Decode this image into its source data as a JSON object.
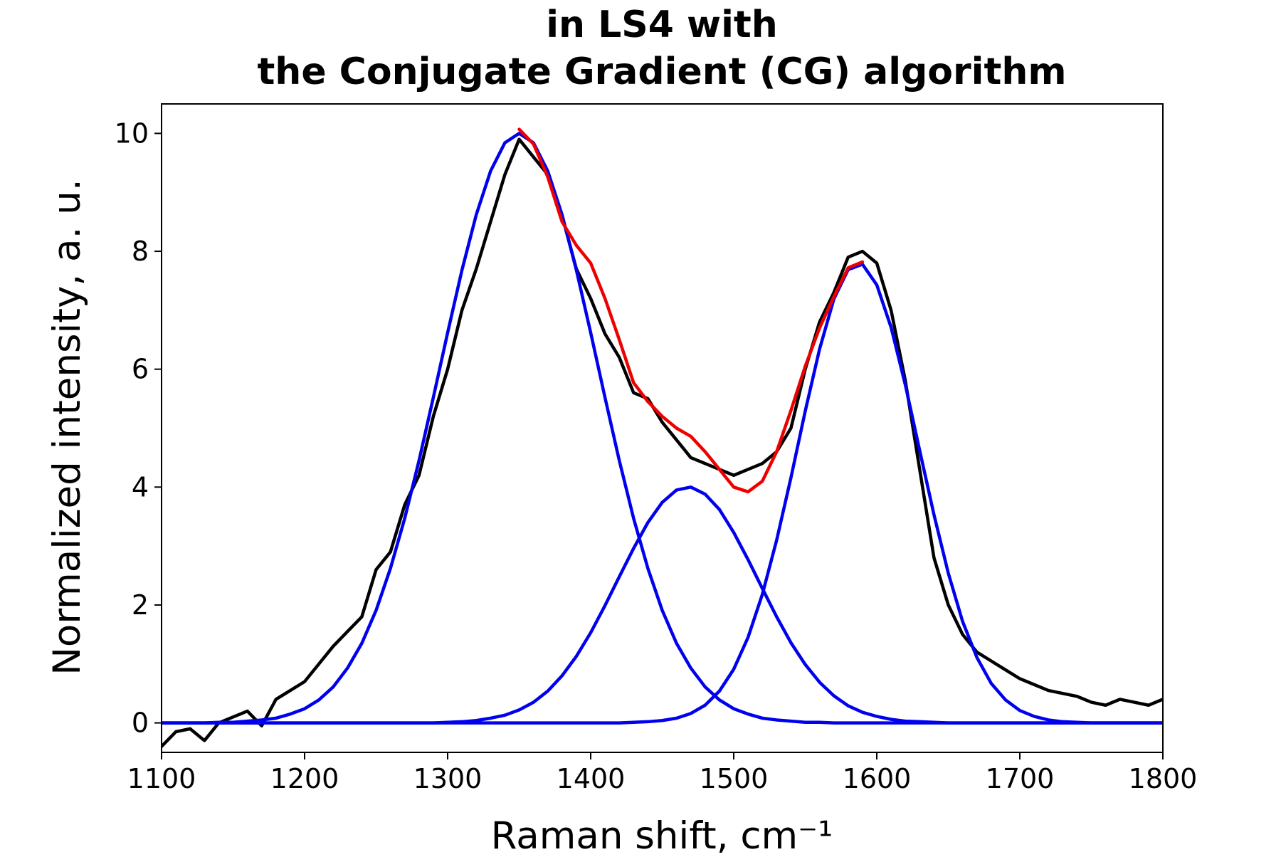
{
  "chart_data": {
    "type": "line",
    "title": [
      "in LS4 with",
      "the Conjugate Gradient (CG) algorithm"
    ],
    "xlabel": "Raman shift, cm⁻¹",
    "ylabel": "Normalized intensity, a. u.",
    "xlim": [
      1100,
      1800
    ],
    "xticks": [
      1100,
      1200,
      1300,
      1400,
      1500,
      1600,
      1700,
      1800
    ],
    "ylim": [
      -0.5,
      10.5
    ],
    "yticks": [
      0,
      2,
      4,
      6,
      8,
      10
    ],
    "grid": false,
    "x": [
      1100,
      1110,
      1120,
      1130,
      1140,
      1150,
      1160,
      1170,
      1180,
      1190,
      1200,
      1210,
      1220,
      1230,
      1240,
      1250,
      1260,
      1270,
      1280,
      1290,
      1300,
      1310,
      1320,
      1330,
      1340,
      1350,
      1360,
      1370,
      1380,
      1390,
      1400,
      1410,
      1420,
      1430,
      1440,
      1450,
      1460,
      1470,
      1480,
      1490,
      1500,
      1510,
      1520,
      1530,
      1540,
      1550,
      1560,
      1570,
      1580,
      1590,
      1600,
      1610,
      1620,
      1630,
      1640,
      1650,
      1660,
      1670,
      1680,
      1690,
      1700,
      1710,
      1720,
      1730,
      1740,
      1750,
      1760,
      1770,
      1780,
      1790,
      1800
    ],
    "series": [
      {
        "color": "#000000",
        "values": [
          -0.4,
          -0.15,
          -0.1,
          -0.3,
          0.0,
          0.1,
          0.2,
          -0.05,
          0.4,
          0.55,
          0.7,
          1.0,
          1.3,
          1.55,
          1.8,
          2.6,
          2.9,
          3.7,
          4.2,
          5.2,
          6.0,
          7.0,
          7.7,
          8.5,
          9.3,
          9.9,
          9.6,
          9.3,
          8.6,
          7.7,
          7.2,
          6.6,
          6.2,
          5.6,
          5.5,
          5.1,
          4.8,
          4.5,
          4.4,
          4.3,
          4.2,
          4.3,
          4.4,
          4.6,
          5.0,
          6.0,
          6.8,
          7.3,
          7.9,
          8.0,
          7.8,
          7.0,
          5.8,
          4.3,
          2.8,
          2.0,
          1.5,
          1.2,
          1.05,
          0.9,
          0.75,
          0.65,
          0.55,
          0.5,
          0.45,
          0.35,
          0.3,
          0.4,
          0.35,
          0.3,
          0.4
        ]
      },
      {
        "color": "#0000ee",
        "values": [
          0,
          0,
          0,
          0,
          0.01,
          0.01,
          0.03,
          0.05,
          0.08,
          0.15,
          0.24,
          0.39,
          0.61,
          0.93,
          1.35,
          1.91,
          2.62,
          3.47,
          4.45,
          5.52,
          6.62,
          7.68,
          8.62,
          9.36,
          9.84,
          10,
          9.84,
          9.36,
          8.62,
          7.68,
          6.62,
          5.52,
          4.45,
          3.47,
          2.62,
          1.91,
          1.35,
          0.93,
          0.61,
          0.39,
          0.24,
          0.15,
          0.08,
          0.05,
          0.03,
          0.01,
          0.01,
          0,
          0,
          0,
          0,
          0,
          0,
          0,
          0,
          0,
          0,
          0,
          0,
          0,
          0,
          0,
          0,
          0,
          0,
          0,
          0,
          0,
          0,
          0,
          0
        ]
      },
      {
        "color": "#0000ee",
        "values": [
          0,
          0,
          0,
          0,
          0,
          0,
          0,
          0,
          0,
          0,
          0,
          0,
          0,
          0,
          0,
          0,
          0,
          0,
          0,
          0,
          0.01,
          0.02,
          0.04,
          0.08,
          0.13,
          0.22,
          0.35,
          0.54,
          0.8,
          1.13,
          1.53,
          1.99,
          2.48,
          2.96,
          3.4,
          3.74,
          3.95,
          4.0,
          3.88,
          3.62,
          3.23,
          2.77,
          2.28,
          1.8,
          1.36,
          0.99,
          0.69,
          0.46,
          0.29,
          0.18,
          0.11,
          0.06,
          0.03,
          0.02,
          0.01,
          0,
          0,
          0,
          0,
          0,
          0,
          0,
          0,
          0,
          0,
          0,
          0,
          0,
          0,
          0,
          0
        ]
      },
      {
        "color": "#0000ee",
        "values": [
          0,
          0,
          0,
          0,
          0,
          0,
          0,
          0,
          0,
          0,
          0,
          0,
          0,
          0,
          0,
          0,
          0,
          0,
          0,
          0,
          0,
          0,
          0,
          0,
          0,
          0,
          0,
          0,
          0,
          0,
          0,
          0,
          0,
          0.01,
          0.02,
          0.04,
          0.08,
          0.16,
          0.3,
          0.54,
          0.91,
          1.45,
          2.18,
          3.1,
          4.16,
          5.29,
          6.34,
          7.19,
          7.69,
          7.78,
          7.43,
          6.71,
          5.73,
          4.62,
          3.53,
          2.54,
          1.72,
          1.11,
          0.67,
          0.39,
          0.21,
          0.11,
          0.05,
          0.02,
          0.01,
          0,
          0,
          0,
          0,
          0,
          0
        ]
      },
      {
        "color": "#ee0000",
        "values": [
          null,
          null,
          null,
          null,
          null,
          null,
          null,
          null,
          null,
          null,
          null,
          null,
          null,
          null,
          null,
          null,
          null,
          null,
          null,
          null,
          null,
          null,
          null,
          null,
          null,
          10.07,
          9.82,
          9.26,
          8.5,
          8.1,
          7.8,
          7.2,
          6.5,
          5.77,
          5.45,
          5.2,
          5.0,
          4.86,
          4.6,
          4.3,
          4.0,
          3.92,
          4.1,
          4.6,
          5.3,
          6.05,
          6.7,
          7.23,
          7.72,
          7.82,
          null,
          null,
          null,
          null,
          null,
          null,
          null,
          null,
          null,
          null,
          null,
          null,
          null,
          null,
          null,
          null,
          null,
          null,
          null,
          null,
          null
        ]
      }
    ]
  }
}
